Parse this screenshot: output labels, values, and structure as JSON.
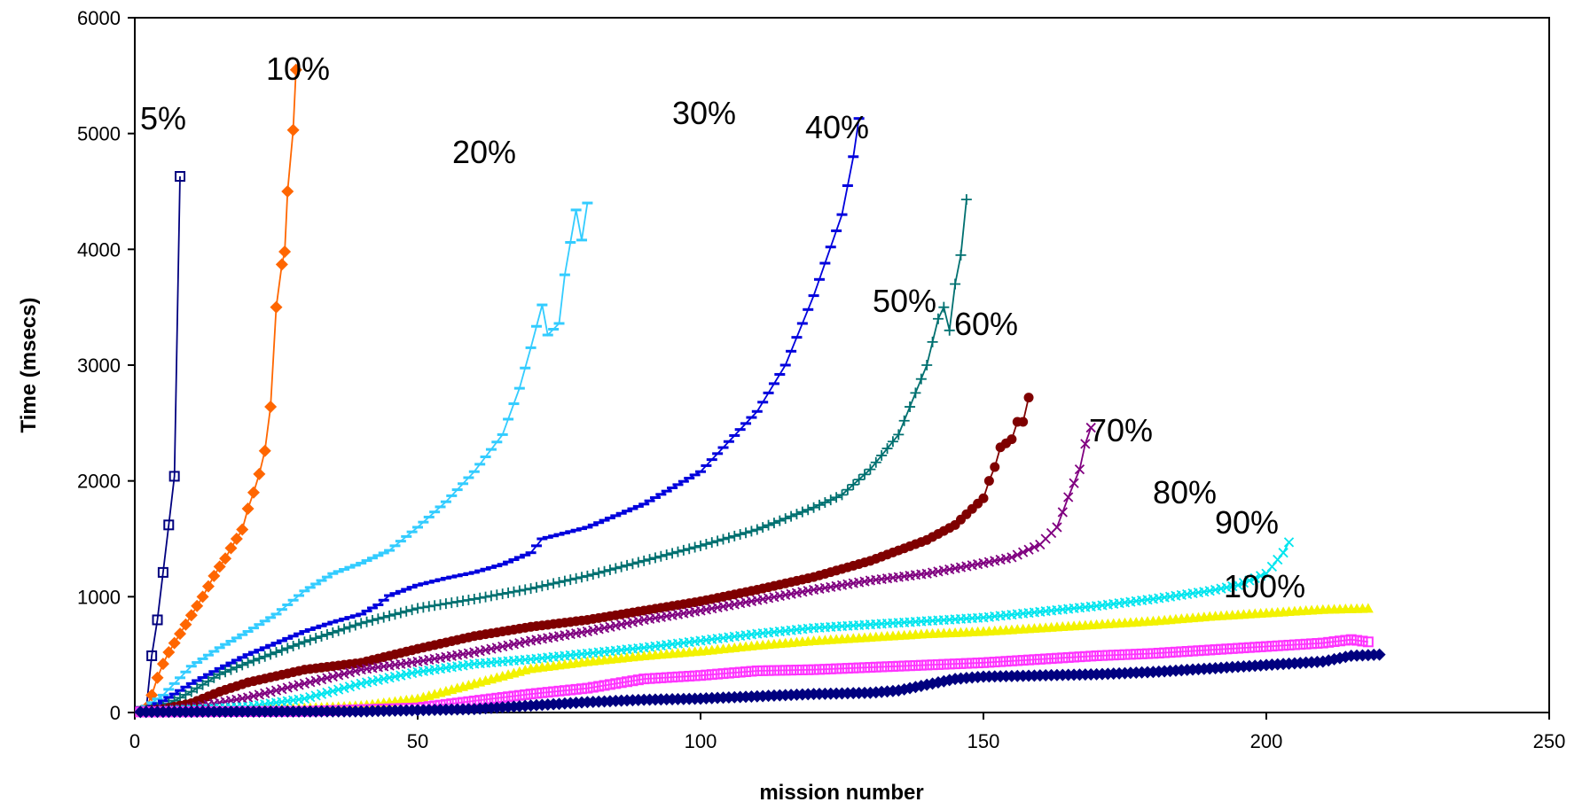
{
  "chart_data": {
    "type": "line",
    "title": "",
    "xlabel": "mission number",
    "ylabel": "Time (msecs)",
    "xlim": [
      0,
      250
    ],
    "ylim": [
      0,
      6000
    ],
    "xticks": [
      0,
      50,
      100,
      150,
      200,
      250
    ],
    "yticks": [
      0,
      1000,
      2000,
      3000,
      4000,
      5000,
      6000
    ],
    "grid": false,
    "series": [
      {
        "name": "5%",
        "color": "#00007f",
        "marker": "square",
        "points": [
          [
            1,
            10
          ],
          [
            2,
            20
          ],
          [
            3,
            490
          ],
          [
            4,
            800
          ],
          [
            5,
            1210
          ],
          [
            6,
            1620
          ],
          [
            7,
            2040
          ],
          [
            8,
            4630
          ]
        ]
      },
      {
        "name": "10%",
        "color": "#ff6600",
        "marker": "diamond",
        "points": [
          [
            1,
            10
          ],
          [
            2,
            40
          ],
          [
            3,
            150
          ],
          [
            4,
            300
          ],
          [
            5,
            420
          ],
          [
            6,
            520
          ],
          [
            7,
            600
          ],
          [
            8,
            680
          ],
          [
            9,
            760
          ],
          [
            10,
            840
          ],
          [
            11,
            920
          ],
          [
            12,
            1000
          ],
          [
            13,
            1090
          ],
          [
            14,
            1180
          ],
          [
            15,
            1260
          ],
          [
            16,
            1330
          ],
          [
            17,
            1420
          ],
          [
            18,
            1500
          ],
          [
            19,
            1580
          ],
          [
            20,
            1760
          ],
          [
            21,
            1900
          ],
          [
            22,
            2060
          ],
          [
            23,
            2260
          ],
          [
            24,
            2640
          ],
          [
            25,
            3500
          ],
          [
            26,
            3870
          ],
          [
            26.5,
            3980
          ],
          [
            27,
            4500
          ],
          [
            28,
            5030
          ],
          [
            28.5,
            5550
          ]
        ]
      },
      {
        "name": "20%",
        "color": "#33ccff",
        "marker": "dash",
        "points": [
          [
            1,
            20
          ],
          [
            5,
            150
          ],
          [
            10,
            400
          ],
          [
            15,
            560
          ],
          [
            20,
            700
          ],
          [
            25,
            850
          ],
          [
            30,
            1050
          ],
          [
            35,
            1200
          ],
          [
            40,
            1290
          ],
          [
            45,
            1400
          ],
          [
            50,
            1600
          ],
          [
            55,
            1820
          ],
          [
            60,
            2080
          ],
          [
            65,
            2400
          ],
          [
            68,
            2800
          ],
          [
            70,
            3150
          ],
          [
            72,
            3520
          ],
          [
            73,
            3260
          ],
          [
            75,
            3360
          ],
          [
            76,
            3780
          ],
          [
            78,
            4340
          ],
          [
            79,
            4080
          ],
          [
            80,
            4400
          ]
        ]
      },
      {
        "name": "30%",
        "color": "#0000dd",
        "marker": "dash",
        "points": [
          [
            1,
            10
          ],
          [
            5,
            100
          ],
          [
            10,
            250
          ],
          [
            15,
            380
          ],
          [
            20,
            500
          ],
          [
            25,
            600
          ],
          [
            30,
            700
          ],
          [
            35,
            780
          ],
          [
            40,
            850
          ],
          [
            43,
            930
          ],
          [
            45,
            1010
          ],
          [
            50,
            1100
          ],
          [
            55,
            1160
          ],
          [
            60,
            1210
          ],
          [
            65,
            1280
          ],
          [
            70,
            1380
          ],
          [
            72,
            1500
          ],
          [
            80,
            1600
          ],
          [
            90,
            1800
          ],
          [
            100,
            2080
          ],
          [
            110,
            2600
          ],
          [
            115,
            3000
          ],
          [
            120,
            3600
          ],
          [
            125,
            4300
          ],
          [
            127,
            4800
          ],
          [
            128,
            5130
          ]
        ]
      },
      {
        "name": "40%",
        "color": "#007070",
        "marker": "plus",
        "points": [
          [
            1,
            10
          ],
          [
            5,
            50
          ],
          [
            10,
            180
          ],
          [
            15,
            330
          ],
          [
            20,
            430
          ],
          [
            30,
            610
          ],
          [
            40,
            770
          ],
          [
            50,
            900
          ],
          [
            60,
            980
          ],
          [
            70,
            1070
          ],
          [
            80,
            1180
          ],
          [
            90,
            1310
          ],
          [
            100,
            1440
          ],
          [
            110,
            1580
          ],
          [
            120,
            1770
          ],
          [
            125,
            1880
          ],
          [
            130,
            2100
          ],
          [
            135,
            2400
          ],
          [
            140,
            3000
          ],
          [
            142,
            3400
          ],
          [
            143,
            3500
          ],
          [
            144,
            3300
          ],
          [
            145,
            3700
          ],
          [
            146,
            3950
          ],
          [
            147,
            4430
          ]
        ]
      },
      {
        "name": "50%",
        "color": "#7f0000",
        "marker": "circle",
        "points": [
          [
            1,
            10
          ],
          [
            5,
            30
          ],
          [
            10,
            80
          ],
          [
            15,
            180
          ],
          [
            20,
            260
          ],
          [
            30,
            370
          ],
          [
            40,
            430
          ],
          [
            50,
            550
          ],
          [
            60,
            660
          ],
          [
            70,
            740
          ],
          [
            80,
            800
          ],
          [
            90,
            880
          ],
          [
            100,
            960
          ],
          [
            110,
            1060
          ],
          [
            120,
            1170
          ],
          [
            130,
            1310
          ],
          [
            140,
            1490
          ],
          [
            145,
            1620
          ],
          [
            150,
            1850
          ],
          [
            151,
            2000
          ],
          [
            152,
            2120
          ],
          [
            153,
            2290
          ],
          [
            155,
            2360
          ],
          [
            156,
            2510
          ],
          [
            157,
            2510
          ],
          [
            158,
            2720
          ]
        ]
      },
      {
        "name": "60%",
        "color": "#800080",
        "marker": "x",
        "points": [
          [
            1,
            10
          ],
          [
            10,
            40
          ],
          [
            20,
            130
          ],
          [
            30,
            250
          ],
          [
            40,
            370
          ],
          [
            50,
            440
          ],
          [
            60,
            520
          ],
          [
            70,
            620
          ],
          [
            80,
            700
          ],
          [
            90,
            800
          ],
          [
            100,
            880
          ],
          [
            110,
            970
          ],
          [
            120,
            1060
          ],
          [
            130,
            1140
          ],
          [
            140,
            1200
          ],
          [
            150,
            1290
          ],
          [
            155,
            1340
          ],
          [
            160,
            1450
          ],
          [
            163,
            1600
          ],
          [
            165,
            1860
          ],
          [
            167,
            2100
          ],
          [
            168,
            2320
          ],
          [
            169,
            2460
          ]
        ]
      },
      {
        "name": "70%",
        "color": "#00e5ee",
        "marker": "x",
        "points": [
          [
            1,
            5
          ],
          [
            20,
            50
          ],
          [
            30,
            120
          ],
          [
            40,
            250
          ],
          [
            50,
            350
          ],
          [
            60,
            420
          ],
          [
            70,
            460
          ],
          [
            80,
            510
          ],
          [
            90,
            560
          ],
          [
            100,
            620
          ],
          [
            110,
            680
          ],
          [
            120,
            730
          ],
          [
            130,
            760
          ],
          [
            140,
            790
          ],
          [
            150,
            820
          ],
          [
            160,
            870
          ],
          [
            170,
            920
          ],
          [
            180,
            980
          ],
          [
            190,
            1050
          ],
          [
            195,
            1100
          ],
          [
            200,
            1200
          ],
          [
            203,
            1380
          ],
          [
            204,
            1470
          ]
        ]
      },
      {
        "name": "80%",
        "color": "#f2f200",
        "marker": "triangle",
        "points": [
          [
            1,
            5
          ],
          [
            20,
            20
          ],
          [
            40,
            60
          ],
          [
            50,
            120
          ],
          [
            60,
            250
          ],
          [
            70,
            380
          ],
          [
            80,
            440
          ],
          [
            90,
            490
          ],
          [
            100,
            530
          ],
          [
            110,
            580
          ],
          [
            120,
            620
          ],
          [
            130,
            650
          ],
          [
            140,
            680
          ],
          [
            150,
            700
          ],
          [
            160,
            730
          ],
          [
            170,
            760
          ],
          [
            180,
            790
          ],
          [
            190,
            830
          ],
          [
            200,
            860
          ],
          [
            210,
            890
          ],
          [
            218,
            900
          ]
        ]
      },
      {
        "name": "90%",
        "color": "#ff33ff",
        "marker": "square",
        "points": [
          [
            1,
            5
          ],
          [
            30,
            10
          ],
          [
            50,
            40
          ],
          [
            60,
            100
          ],
          [
            70,
            160
          ],
          [
            80,
            210
          ],
          [
            90,
            290
          ],
          [
            100,
            320
          ],
          [
            110,
            360
          ],
          [
            120,
            370
          ],
          [
            130,
            390
          ],
          [
            140,
            410
          ],
          [
            150,
            430
          ],
          [
            160,
            460
          ],
          [
            170,
            490
          ],
          [
            180,
            510
          ],
          [
            190,
            540
          ],
          [
            200,
            570
          ],
          [
            210,
            600
          ],
          [
            215,
            630
          ],
          [
            218,
            610
          ]
        ]
      },
      {
        "name": "100%",
        "color": "#00007f",
        "marker": "diamond",
        "points": [
          [
            1,
            5
          ],
          [
            40,
            10
          ],
          [
            60,
            30
          ],
          [
            70,
            60
          ],
          [
            80,
            90
          ],
          [
            90,
            110
          ],
          [
            100,
            120
          ],
          [
            110,
            140
          ],
          [
            120,
            160
          ],
          [
            130,
            170
          ],
          [
            135,
            190
          ],
          [
            140,
            240
          ],
          [
            145,
            290
          ],
          [
            150,
            310
          ],
          [
            160,
            320
          ],
          [
            170,
            330
          ],
          [
            180,
            350
          ],
          [
            190,
            380
          ],
          [
            200,
            410
          ],
          [
            210,
            440
          ],
          [
            215,
            490
          ],
          [
            220,
            500
          ]
        ]
      }
    ]
  }
}
